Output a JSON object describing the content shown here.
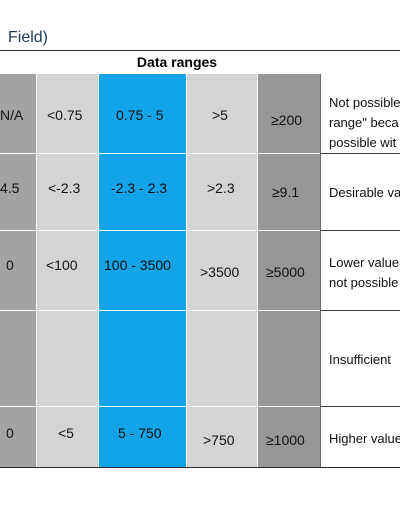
{
  "caption": "Field)",
  "table": {
    "header": "Data ranges",
    "rows": [
      {
        "cells": [
          "N/A",
          "<0.75",
          "0.75 - 5",
          ">5",
          "≥200"
        ],
        "note_lines": [
          "Not possible",
          "range\" beca",
          "possible wit"
        ]
      },
      {
        "cells": [
          "4.5",
          "<-2.3",
          "-2.3 - 2.3",
          ">2.3",
          "≥9.1"
        ],
        "note_lines": [
          "Desirable va"
        ]
      },
      {
        "cells": [
          "0",
          "<100",
          "100 - 3500",
          ">3500",
          "≥5000"
        ],
        "note_lines": [
          "Lower value",
          "not possible"
        ]
      },
      {
        "cells": [
          "",
          "",
          "",
          "",
          ""
        ],
        "note_lines": [
          "Insufficient"
        ]
      },
      {
        "cells": [
          "0",
          "<5",
          "5 - 750",
          ">750",
          "≥1000"
        ],
        "note_lines": [
          "Higher value"
        ]
      }
    ]
  },
  "colors": {
    "col_dark_grey": "#a3a3a3",
    "col_light_grey": "#d4d4d4",
    "col_blue": "#12a4e6",
    "col_mid_grey": "#979797"
  }
}
